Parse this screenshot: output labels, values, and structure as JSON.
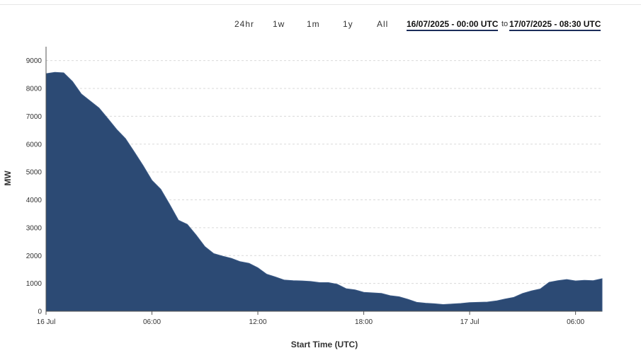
{
  "range_buttons": [
    "24hr",
    "1w",
    "1m",
    "1y",
    "All"
  ],
  "date_range": {
    "from": "16/07/2025 - 00:00 UTC",
    "to_label": "to",
    "to": "17/07/2025 - 08:30 UTC"
  },
  "chart_data": {
    "type": "area",
    "title": "",
    "xlabel": "Start Time (UTC)",
    "ylabel": "MW",
    "ylim": [
      0,
      9500
    ],
    "yticks": [
      0,
      1000,
      2000,
      3000,
      4000,
      5000,
      6000,
      7000,
      8000,
      9000
    ],
    "xlim_hours": [
      0,
      31.5
    ],
    "xticks": [
      {
        "hour": 0,
        "label": "16 Jul"
      },
      {
        "hour": 6,
        "label": "06:00"
      },
      {
        "hour": 12,
        "label": "12:00"
      },
      {
        "hour": 18,
        "label": "18:00"
      },
      {
        "hour": 24,
        "label": "17 Jul"
      },
      {
        "hour": 30,
        "label": "06:00"
      }
    ],
    "grid": true,
    "fill_color": "#2c4a74",
    "series": [
      {
        "x_hours": [
          0,
          0.5,
          1,
          1.5,
          2,
          2.5,
          3,
          3.5,
          4,
          4.5,
          5,
          5.5,
          6,
          6.5,
          7,
          7.5,
          8,
          8.5,
          9,
          9.5,
          10,
          10.5,
          11,
          11.5,
          12,
          12.5,
          13,
          13.5,
          14,
          14.5,
          15,
          15.5,
          16,
          16.5,
          17,
          17.5,
          18,
          18.5,
          19,
          19.5,
          20,
          20.5,
          21,
          21.5,
          22,
          22.5,
          23,
          23.5,
          24,
          24.5,
          25,
          25.5,
          26,
          26.5,
          27,
          27.5,
          28,
          28.5,
          29,
          29.5,
          30,
          30.5,
          31,
          31.5
        ],
        "values": [
          8530,
          8580,
          8560,
          8250,
          7800,
          7550,
          7300,
          6920,
          6530,
          6200,
          5720,
          5230,
          4700,
          4380,
          3840,
          3270,
          3120,
          2740,
          2320,
          2070,
          1980,
          1900,
          1780,
          1720,
          1560,
          1330,
          1230,
          1120,
          1100,
          1090,
          1070,
          1030,
          1030,
          970,
          810,
          770,
          680,
          660,
          640,
          560,
          520,
          430,
          320,
          290,
          270,
          240,
          260,
          280,
          310,
          320,
          330,
          370,
          440,
          500,
          640,
          730,
          800,
          1040,
          1100,
          1140,
          1090,
          1110,
          1100,
          1170
        ]
      }
    ]
  }
}
